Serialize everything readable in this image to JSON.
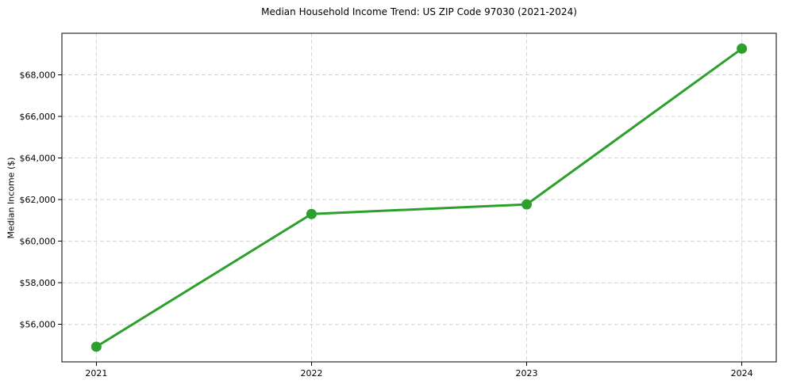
{
  "chart_data": {
    "type": "line",
    "title": "Median Household Income Trend: US ZIP Code 97030 (2021-2024)",
    "xlabel": "",
    "ylabel": "Median Income ($)",
    "categories": [
      "2021",
      "2022",
      "2023",
      "2024"
    ],
    "x": [
      2021,
      2022,
      2023,
      2024
    ],
    "values": [
      54930,
      61310,
      61770,
      69260
    ],
    "xlim": [
      2020.84,
      2024.16
    ],
    "ylim": [
      54200,
      70000
    ],
    "yticks": [
      56000,
      58000,
      60000,
      62000,
      64000,
      66000,
      68000
    ],
    "ytick_labels": [
      "$56,000",
      "$58,000",
      "$60,000",
      "$62,000",
      "$64,000",
      "$66,000",
      "$68,000"
    ],
    "grid": true,
    "grid_style": "dashed",
    "legend_position": "none",
    "marker": "circle",
    "colors": {
      "line": "#2ca02c",
      "marker": "#2ca02c",
      "grid": "#d4d4d4",
      "spine": "#000000",
      "text": "#000000",
      "background": "#ffffff"
    }
  }
}
